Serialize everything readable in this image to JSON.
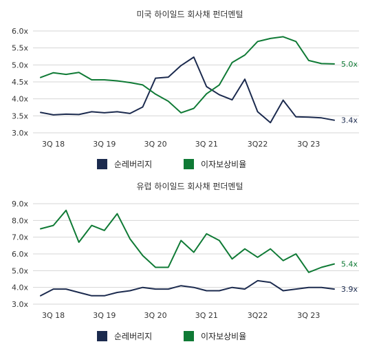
{
  "colors": {
    "navy": "#1b2a4e",
    "green": "#0f7a35",
    "grid": "#d4d4d4",
    "text": "#333333"
  },
  "legend": {
    "net_leverage": "순레버리지",
    "interest_coverage": "이자보상비율"
  },
  "chart_data": [
    {
      "type": "line",
      "title": "미국 하이일드 회사채 펀더멘털",
      "xlabel": "",
      "ylabel": "",
      "ylim": [
        3.0,
        6.0
      ],
      "yticks": [
        "6.0x",
        "5.5x",
        "5.0x",
        "4.5x",
        "4.0x",
        "3.5x",
        "3.0x"
      ],
      "ytick_values": [
        6.0,
        5.5,
        5.0,
        4.5,
        4.0,
        3.5,
        3.0
      ],
      "xticks": [
        "3Q 18",
        "3Q 19",
        "3Q 20",
        "3Q 21",
        "3Q22",
        "3Q 23"
      ],
      "xtick_index": [
        1,
        5,
        9,
        13,
        17,
        21
      ],
      "grid": true,
      "legend_position": "bottom",
      "series": [
        {
          "name": "순레버리지",
          "color": "#1b2a4e",
          "values": [
            3.6,
            3.53,
            3.55,
            3.54,
            3.62,
            3.59,
            3.62,
            3.57,
            3.76,
            4.61,
            4.64,
            4.98,
            5.23,
            4.36,
            4.12,
            3.97,
            4.58,
            3.62,
            3.3,
            3.96,
            3.47,
            3.46,
            3.44,
            3.37
          ],
          "end_label": "3.4x"
        },
        {
          "name": "이자보상비율",
          "color": "#0f7a35",
          "values": [
            4.63,
            4.77,
            4.72,
            4.78,
            4.56,
            4.56,
            4.53,
            4.48,
            4.41,
            4.14,
            3.93,
            3.59,
            3.72,
            4.15,
            4.41,
            5.07,
            5.29,
            5.69,
            5.78,
            5.83,
            5.69,
            5.13,
            5.04,
            5.03
          ],
          "end_label": "5.0x"
        }
      ]
    },
    {
      "type": "line",
      "title": "유럽 하이일드 회사채 펀더멘털",
      "xlabel": "",
      "ylabel": "",
      "ylim": [
        3.0,
        9.0
      ],
      "yticks": [
        "9.0x",
        "8.0x",
        "7.0x",
        "6.0x",
        "5.0x",
        "4.0x",
        "3.0x"
      ],
      "ytick_values": [
        9.0,
        8.0,
        7.0,
        6.0,
        5.0,
        4.0,
        3.0
      ],
      "xticks": [
        "3Q 18",
        "3Q 19",
        "3Q 20",
        "3Q 21",
        "3Q22",
        "3Q 23"
      ],
      "xtick_index": [
        1,
        5,
        9,
        13,
        17,
        21
      ],
      "grid": true,
      "legend_position": "bottom",
      "series": [
        {
          "name": "순레버리지",
          "color": "#1b2a4e",
          "values": [
            3.5,
            3.9,
            3.9,
            3.7,
            3.5,
            3.5,
            3.7,
            3.8,
            4.0,
            3.9,
            3.9,
            4.1,
            4.0,
            3.8,
            3.8,
            4.0,
            3.9,
            4.4,
            4.3,
            3.8,
            3.9,
            4.0,
            4.0,
            3.9
          ],
          "end_label": "3.9x"
        },
        {
          "name": "이자보상비율",
          "color": "#0f7a35",
          "values": [
            7.5,
            7.7,
            8.6,
            6.7,
            7.7,
            7.4,
            8.4,
            6.9,
            5.9,
            5.2,
            5.2,
            6.8,
            6.1,
            7.2,
            6.8,
            5.7,
            6.3,
            5.8,
            6.3,
            5.6,
            6.0,
            4.9,
            5.2,
            5.4
          ],
          "end_label": "5.4x"
        }
      ]
    }
  ]
}
